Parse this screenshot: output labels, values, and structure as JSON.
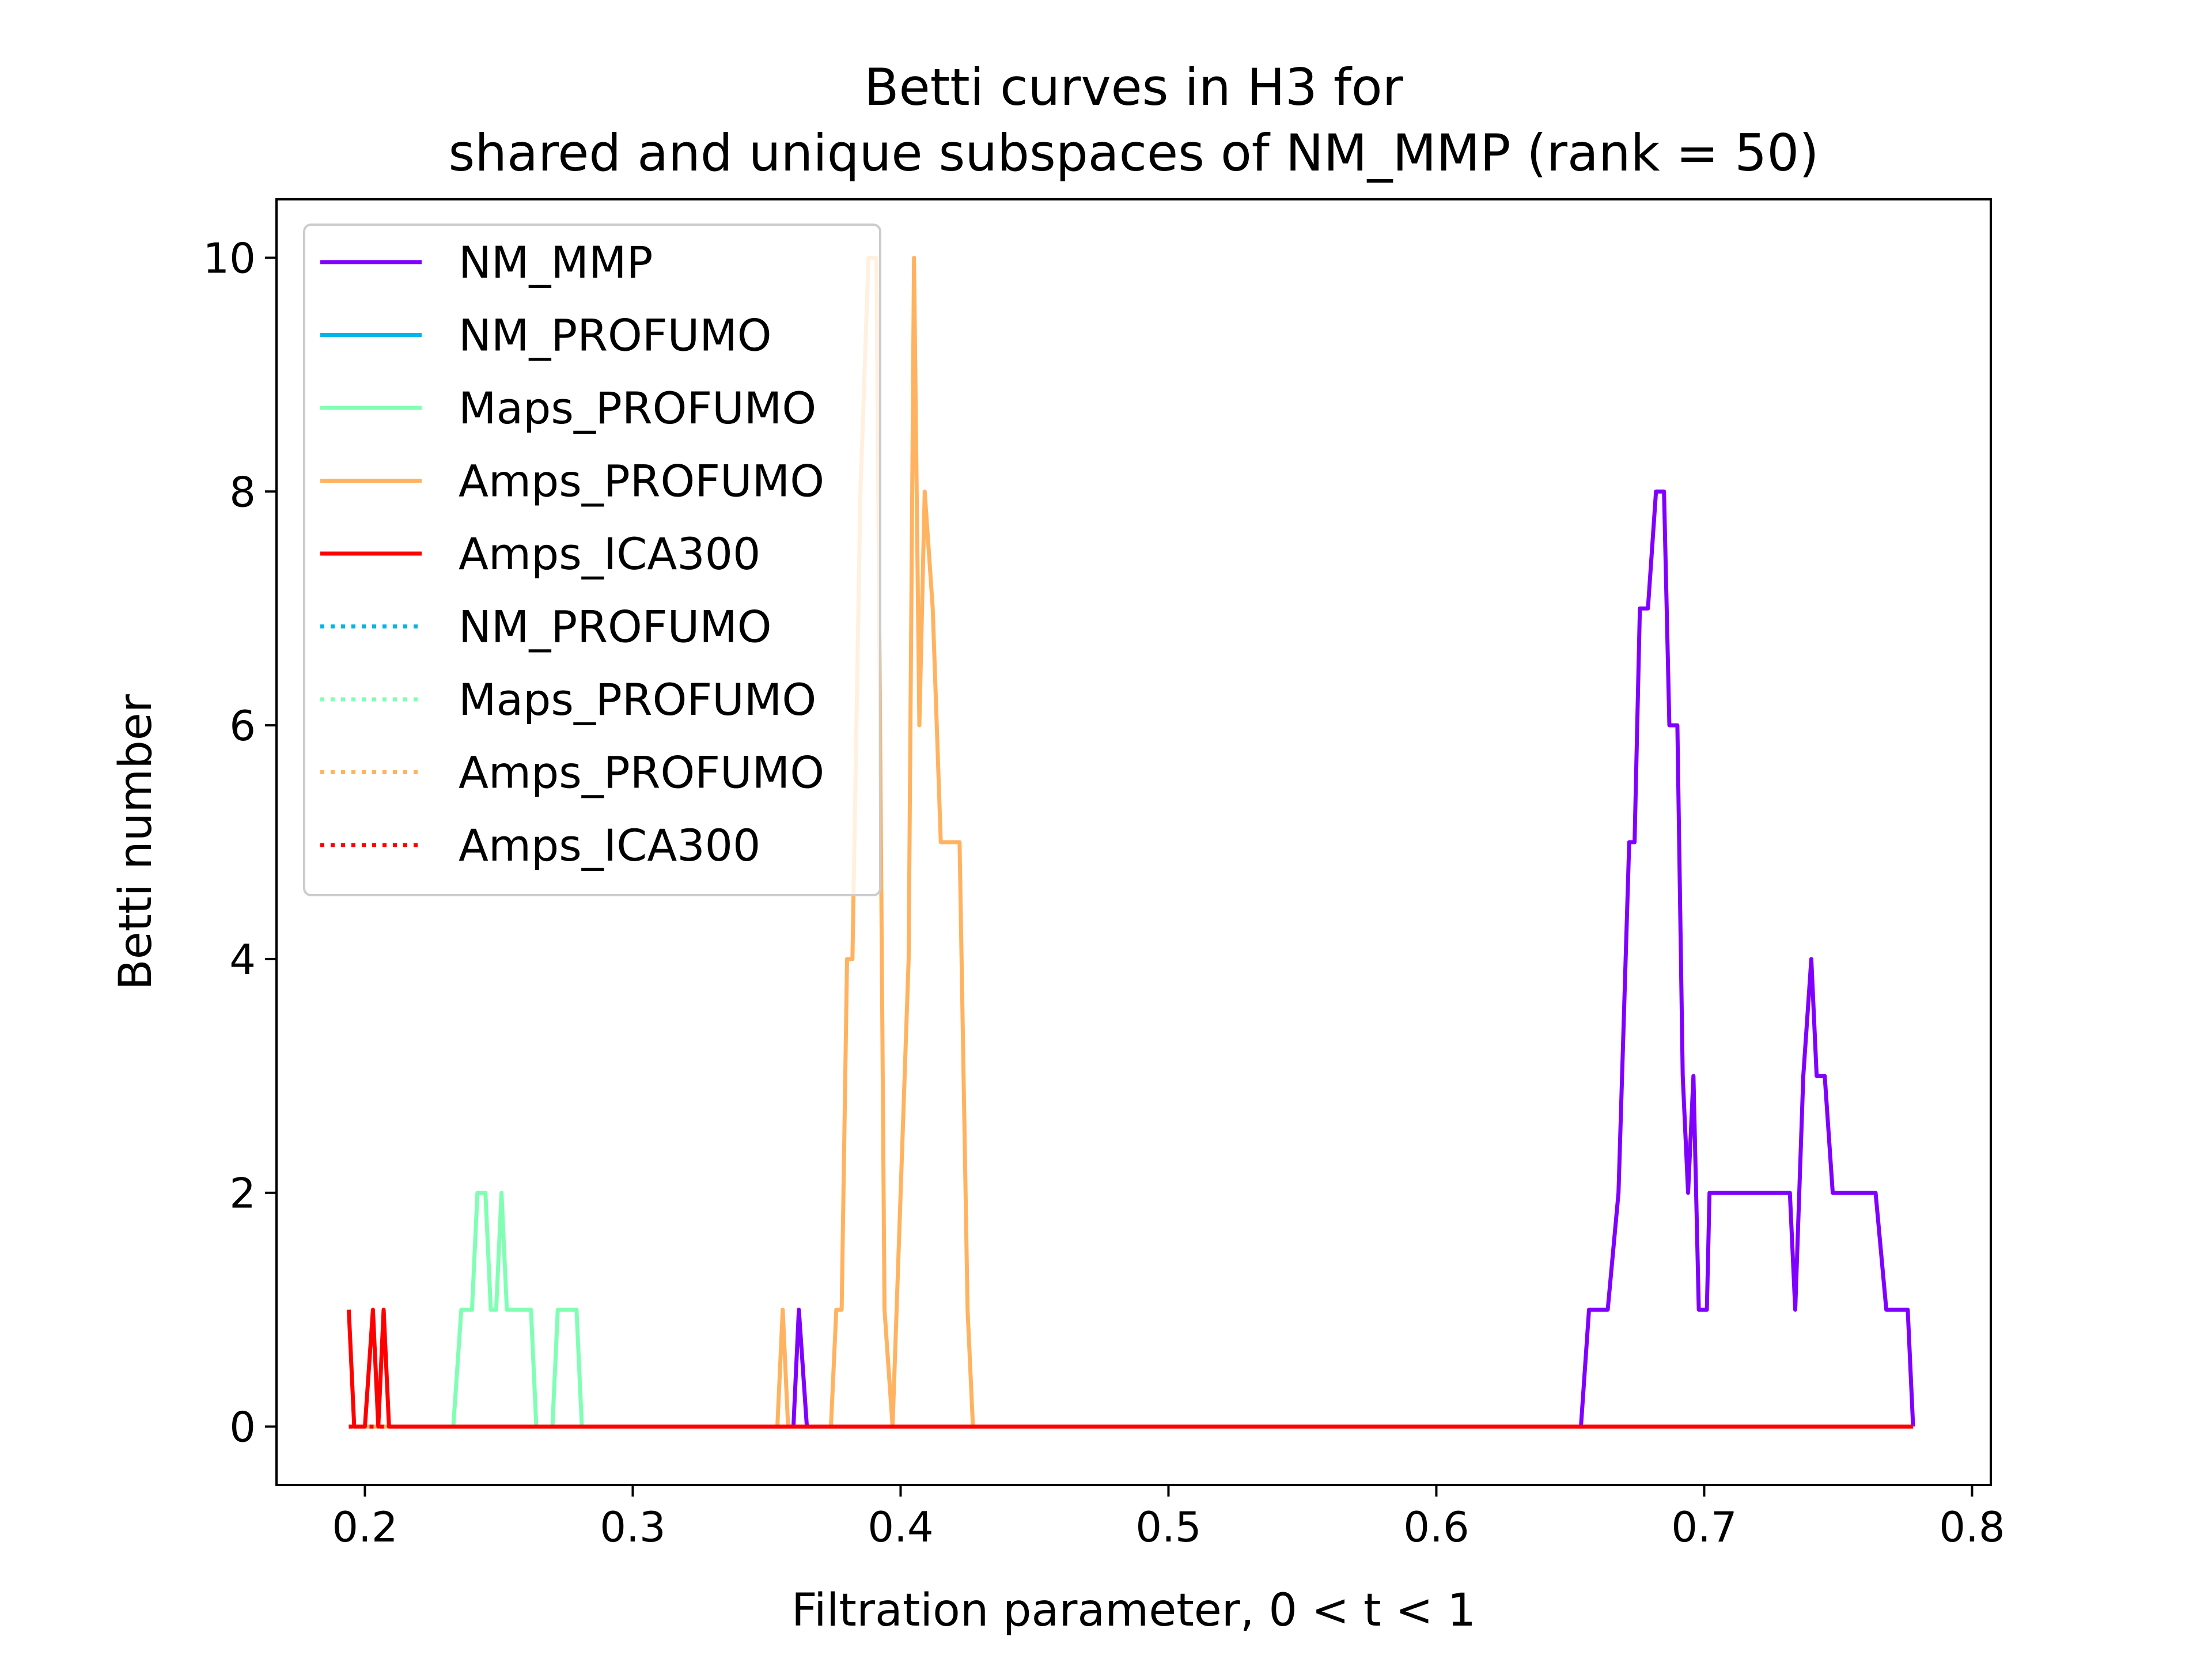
{
  "chart_data": {
    "type": "line",
    "title_lines": [
      "Betti curves in H3 for",
      "shared and unique subspaces of NM_MMP (rank = 50)"
    ],
    "xlabel": "Filtration parameter, 0 < t < 1",
    "ylabel": "Betti number",
    "xlim": [
      0.167,
      0.807
    ],
    "ylim": [
      -0.5,
      10.5
    ],
    "xticks": [
      0.2,
      0.3,
      0.4,
      0.5,
      0.6,
      0.7,
      0.8
    ],
    "xtick_labels": [
      "0.2",
      "0.3",
      "0.4",
      "0.5",
      "0.6",
      "0.7",
      "0.8"
    ],
    "yticks": [
      0,
      2,
      4,
      6,
      8,
      10
    ],
    "ytick_labels": [
      "0",
      "2",
      "4",
      "6",
      "8",
      "10"
    ],
    "grid": false,
    "legend_position": "upper-left",
    "series": [
      {
        "name": "NM_MMP",
        "color": "#8000ff",
        "style": "solid",
        "x": [
          0.194,
          0.36,
          0.362,
          0.365,
          0.366,
          0.654,
          0.657,
          0.664,
          0.668,
          0.672,
          0.674,
          0.676,
          0.679,
          0.682,
          0.685,
          0.687,
          0.69,
          0.692,
          0.694,
          0.696,
          0.698,
          0.701,
          0.702,
          0.704,
          0.706,
          0.709,
          0.712,
          0.732,
          0.734,
          0.737,
          0.74,
          0.742,
          0.745,
          0.748,
          0.751,
          0.764,
          0.768,
          0.776,
          0.778
        ],
        "values": [
          0,
          0,
          1,
          0,
          0,
          0,
          1,
          1,
          2,
          5,
          5,
          7,
          7,
          8,
          8,
          6,
          6,
          3,
          2,
          3,
          1,
          1,
          2,
          2,
          2,
          2,
          2,
          2,
          1,
          3,
          4,
          3,
          3,
          2,
          2,
          2,
          1,
          1,
          0
        ]
      },
      {
        "name": "NM_PROFUMO",
        "color": "#00b5eb",
        "style": "solid",
        "x": [
          0.194,
          0.778
        ],
        "values": [
          0,
          0
        ]
      },
      {
        "name": "Maps_PROFUMO",
        "color": "#80ffb4",
        "style": "solid",
        "x": [
          0.194,
          0.233,
          0.236,
          0.24,
          0.242,
          0.245,
          0.247,
          0.249,
          0.251,
          0.253,
          0.255,
          0.258,
          0.262,
          0.264,
          0.27,
          0.272,
          0.275,
          0.279,
          0.281,
          0.778
        ],
        "values": [
          0,
          0,
          1,
          1,
          2,
          2,
          1,
          1,
          2,
          1,
          1,
          1,
          1,
          0,
          0,
          1,
          1,
          1,
          0,
          0
        ]
      },
      {
        "name": "Amps_PROFUMO",
        "color": "#ffb360",
        "style": "solid",
        "x": [
          0.194,
          0.354,
          0.356,
          0.358,
          0.374,
          0.376,
          0.378,
          0.38,
          0.382,
          0.385,
          0.388,
          0.391,
          0.394,
          0.397,
          0.4,
          0.403,
          0.405,
          0.407,
          0.409,
          0.412,
          0.415,
          0.417,
          0.422,
          0.425,
          0.427,
          0.778
        ],
        "values": [
          0,
          0,
          1,
          0,
          0,
          1,
          1,
          4,
          4,
          8,
          10,
          10,
          1,
          0,
          2,
          4,
          10,
          6,
          8,
          7,
          5,
          5,
          5,
          1,
          0,
          0
        ]
      },
      {
        "name": "Amps_ICA300",
        "color": "#ff0000",
        "style": "solid",
        "x": [
          0.194,
          0.196,
          0.2,
          0.203,
          0.205,
          0.207,
          0.209,
          0.21,
          0.778
        ],
        "values": [
          1,
          0,
          0,
          1,
          0,
          1,
          0,
          0,
          0
        ]
      },
      {
        "name": "NM_PROFUMO",
        "color": "#00b5eb",
        "style": "dotted",
        "x": [
          0.194,
          0.778
        ],
        "values": [
          0,
          0
        ]
      },
      {
        "name": "Maps_PROFUMO",
        "color": "#80ffb4",
        "style": "dotted",
        "x": [
          0.194,
          0.778
        ],
        "values": [
          0,
          0
        ]
      },
      {
        "name": "Amps_PROFUMO",
        "color": "#ffb360",
        "style": "dotted",
        "x": [
          0.194,
          0.778
        ],
        "values": [
          0,
          0
        ]
      },
      {
        "name": "Amps_ICA300",
        "color": "#ff0000",
        "style": "dotted",
        "x": [
          0.194,
          0.778
        ],
        "values": [
          0,
          0
        ]
      }
    ]
  }
}
